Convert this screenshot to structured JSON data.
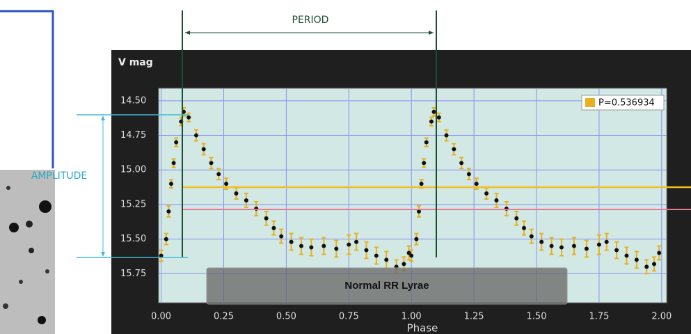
{
  "chart_data": {
    "type": "scatter",
    "y_label": "V mag",
    "x_label": "Phase",
    "annotations": {
      "period": "PERIOD",
      "amplitude": "AMPLITUDE",
      "box": "Normal RR Lyrae"
    },
    "xlim": [
      -0.01,
      2.02
    ],
    "ylim": [
      15.96,
      14.41
    ],
    "xticks": [
      {
        "value": 0,
        "label": "0.00"
      },
      0.25,
      {
        "value": 0.5,
        "label": "0.50"
      },
      0.75,
      {
        "value": 1,
        "label": "1.00"
      },
      1.25,
      {
        "value": 1.5,
        "label": "1.50"
      },
      1.75,
      {
        "value": 2,
        "label": "2.00"
      }
    ],
    "yticks": [
      {
        "value": 14.5,
        "label": "14.50"
      },
      14.75,
      {
        "value": 15,
        "label": "15.00"
      },
      15.25,
      {
        "value": 15.5,
        "label": "15.50"
      },
      15.75
    ],
    "grid": true,
    "legend": "top-right",
    "series": [
      {
        "name": "P=0.536934",
        "color": "#e8b020",
        "point_color": "#111111",
        "x": [
          0.0,
          0.02,
          0.03,
          0.04,
          0.05,
          0.06,
          0.08,
          0.09,
          0.11,
          0.14,
          0.17,
          0.2,
          0.23,
          0.26,
          0.3,
          0.34,
          0.38,
          0.42,
          0.45,
          0.48,
          0.52,
          0.56,
          0.6,
          0.65,
          0.7,
          0.75,
          0.78,
          0.82,
          0.86,
          0.9,
          0.94,
          0.97,
          0.99,
          1.0,
          1.02,
          1.03,
          1.04,
          1.05,
          1.06,
          1.08,
          1.09,
          1.11,
          1.14,
          1.17,
          1.2,
          1.23,
          1.26,
          1.3,
          1.34,
          1.38,
          1.42,
          1.45,
          1.48,
          1.52,
          1.56,
          1.6,
          1.65,
          1.7,
          1.75,
          1.78,
          1.82,
          1.86,
          1.9,
          1.94,
          1.97,
          1.99
        ],
        "values": [
          15.62,
          15.5,
          15.3,
          15.1,
          14.95,
          14.8,
          14.65,
          14.58,
          14.62,
          14.75,
          14.85,
          14.95,
          15.03,
          15.1,
          15.17,
          15.22,
          15.28,
          15.35,
          15.42,
          15.48,
          15.52,
          15.55,
          15.56,
          15.55,
          15.57,
          15.54,
          15.52,
          15.58,
          15.62,
          15.65,
          15.7,
          15.68,
          15.6,
          15.62,
          15.5,
          15.3,
          15.1,
          14.95,
          14.8,
          14.65,
          14.58,
          14.62,
          14.75,
          14.85,
          14.95,
          15.03,
          15.1,
          15.17,
          15.22,
          15.28,
          15.35,
          15.42,
          15.48,
          15.52,
          15.55,
          15.56,
          15.55,
          15.57,
          15.54,
          15.52,
          15.58,
          15.62,
          15.65,
          15.7,
          15.68,
          15.6
        ],
        "errors": [
          0.04,
          0.04,
          0.04,
          0.03,
          0.03,
          0.03,
          0.03,
          0.03,
          0.03,
          0.04,
          0.04,
          0.04,
          0.04,
          0.04,
          0.04,
          0.05,
          0.05,
          0.05,
          0.05,
          0.05,
          0.06,
          0.06,
          0.06,
          0.06,
          0.06,
          0.07,
          0.06,
          0.06,
          0.06,
          0.06,
          0.05,
          0.05,
          0.05,
          0.04,
          0.04,
          0.04,
          0.03,
          0.03,
          0.03,
          0.03,
          0.03,
          0.03,
          0.04,
          0.04,
          0.04,
          0.04,
          0.04,
          0.04,
          0.05,
          0.05,
          0.05,
          0.05,
          0.05,
          0.06,
          0.06,
          0.06,
          0.06,
          0.06,
          0.07,
          0.06,
          0.06,
          0.06,
          0.06,
          0.05,
          0.05,
          0.05
        ]
      }
    ]
  }
}
